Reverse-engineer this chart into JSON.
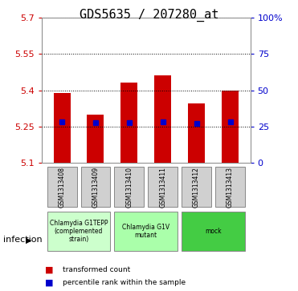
{
  "title": "GDS5635 / 207280_at",
  "samples": [
    "GSM1313408",
    "GSM1313409",
    "GSM1313410",
    "GSM1313411",
    "GSM1313412",
    "GSM1313413"
  ],
  "bar_bottom": 5.1,
  "bar_tops": [
    5.39,
    5.3,
    5.43,
    5.46,
    5.345,
    5.4
  ],
  "percentile_values": [
    5.27,
    5.265,
    5.265,
    5.268,
    5.262,
    5.268
  ],
  "ylim": [
    5.1,
    5.7
  ],
  "yticks": [
    5.1,
    5.25,
    5.4,
    5.55,
    5.7
  ],
  "ytick_labels": [
    "5.1",
    "5.25",
    "5.4",
    "5.55",
    "5.7"
  ],
  "right_yticks": [
    0,
    25,
    50,
    75,
    100
  ],
  "right_ytick_labels": [
    "0",
    "25",
    "50",
    "75",
    "100%"
  ],
  "bar_color": "#cc0000",
  "percentile_color": "#0000cc",
  "bar_width": 0.5,
  "groups": [
    {
      "label": "Chlamydia G1TEPP\n(complemented\nstrain)",
      "samples": [
        0,
        1
      ],
      "color": "#ccffcc"
    },
    {
      "label": "Chlamydia G1V\nmutant",
      "samples": [
        2,
        3
      ],
      "color": "#aaffaa"
    },
    {
      "label": "mock",
      "samples": [
        4,
        5
      ],
      "color": "#44cc44"
    }
  ],
  "factor_label": "infection",
  "plot_bg": "#ffffff",
  "title_fontsize": 11,
  "tick_fontsize": 8,
  "label_fontsize": 8,
  "box_facecolor": "#d0d0d0",
  "box_edgecolor": "#888888"
}
